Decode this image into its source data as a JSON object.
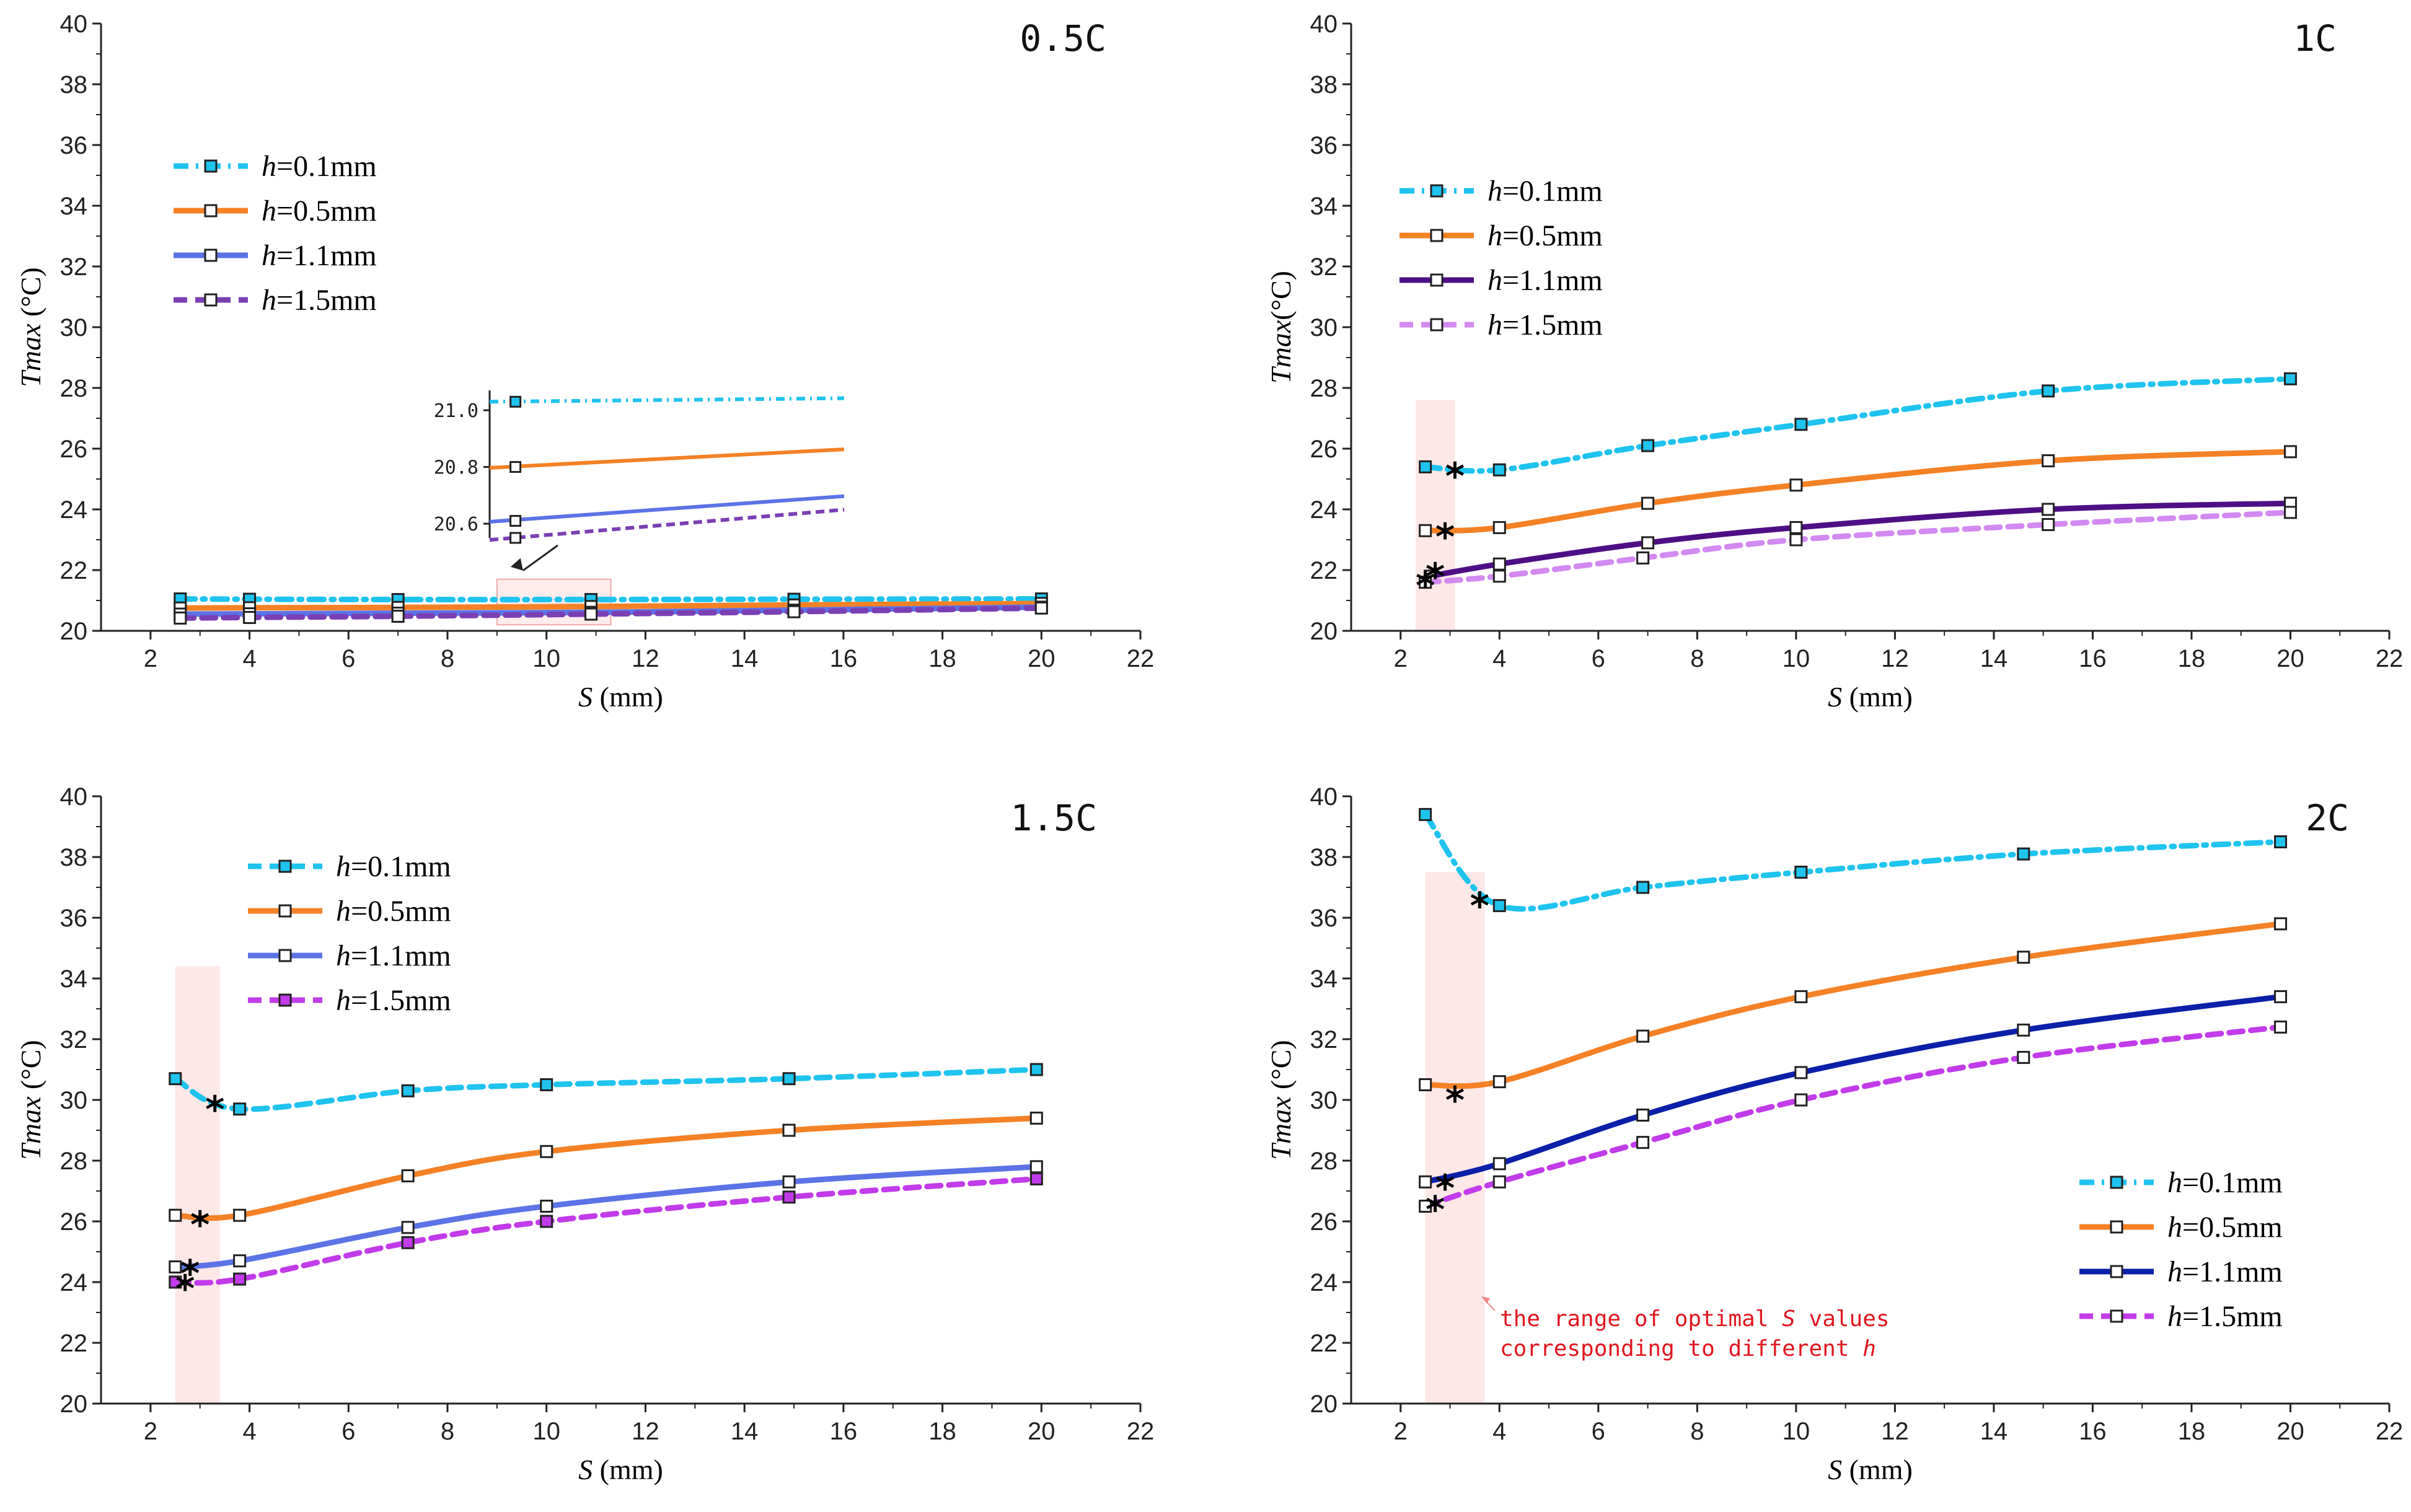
{
  "figure": {
    "inset_ticks": [
      "21.0",
      "20.8",
      "20.6"
    ],
    "annotation_lines": [
      "the range of optimal S values",
      "corresponding to different h"
    ],
    "star_symbol": "*"
  },
  "chart_data": [
    {
      "type": "line",
      "id": "p05",
      "condition_label": "0.5C",
      "xlabel_var": "S",
      "xlabel_unit": " (mm)",
      "ylabel_var": "Tmax",
      "ylabel_unit": " (°C)",
      "xlim": [
        1,
        22
      ],
      "ylim": [
        20,
        40
      ],
      "xticks": [
        2,
        4,
        6,
        8,
        10,
        12,
        14,
        16,
        18,
        20,
        22
      ],
      "yticks": [
        20,
        22,
        24,
        26,
        28,
        30,
        32,
        34,
        36,
        38,
        40
      ],
      "legend_position": "upper-left",
      "highlight_region": {
        "x": [
          9.0,
          11.3
        ],
        "y": [
          20.2,
          21.7
        ]
      },
      "inset": {
        "xlim": [
          10.5,
          16.0
        ],
        "ylim": [
          20.55,
          21.07
        ],
        "yticks": [
          21.0,
          20.8,
          20.6
        ]
      },
      "stars": [],
      "series": [
        {
          "name": "h=0.1mm",
          "h_var": "h",
          "h_value": "=0.1mm",
          "color": "#1ec3ee",
          "dash": "dashdot",
          "marker_fill": "#1ec3ee",
          "x": [
            2.6,
            4.0,
            7.0,
            10.9,
            15.0,
            20.0
          ],
          "y": [
            21.05,
            21.04,
            21.03,
            21.03,
            21.04,
            21.05
          ]
        },
        {
          "name": "h=0.5mm",
          "h_var": "h",
          "h_value": "=0.5mm",
          "color": "#f48125",
          "dash": "solid",
          "marker_fill": "#ffffff",
          "x": [
            2.6,
            4.0,
            7.0,
            10.9,
            15.0,
            20.0
          ],
          "y": [
            20.75,
            20.76,
            20.77,
            20.8,
            20.85,
            20.9
          ]
        },
        {
          "name": "h=1.1mm",
          "h_var": "h",
          "h_value": "=1.1mm",
          "color": "#5b73e6",
          "dash": "solid",
          "marker_fill": "#ffffff",
          "x": [
            2.6,
            4.0,
            7.0,
            10.9,
            15.0,
            20.0
          ],
          "y": [
            20.55,
            20.56,
            20.58,
            20.61,
            20.68,
            20.78
          ]
        },
        {
          "name": "h=1.5mm",
          "h_var": "h",
          "h_value": "=1.5mm",
          "color": "#7b3fb4",
          "dash": "dashed",
          "marker_fill": "#ffffff",
          "x": [
            2.6,
            4.0,
            7.0,
            10.9,
            15.0,
            20.0
          ],
          "y": [
            20.42,
            20.44,
            20.48,
            20.55,
            20.63,
            20.75
          ]
        }
      ]
    },
    {
      "type": "line",
      "id": "p1",
      "condition_label": "1C",
      "xlabel_var": "S",
      "xlabel_unit": " (mm)",
      "ylabel_var": "Tmax",
      "ylabel_unit": "(°C)",
      "xlim": [
        1,
        22
      ],
      "ylim": [
        20,
        40
      ],
      "xticks": [
        2,
        4,
        6,
        8,
        10,
        12,
        14,
        16,
        18,
        20,
        22
      ],
      "yticks": [
        20,
        22,
        24,
        26,
        28,
        30,
        32,
        34,
        36,
        38,
        40
      ],
      "legend_position": "upper-left",
      "highlight_region": {
        "x": [
          2.3,
          3.1
        ],
        "y": [
          20,
          27.6
        ]
      },
      "stars": [
        {
          "x": 3.1,
          "y": 25.2
        },
        {
          "x": 2.9,
          "y": 23.2
        },
        {
          "x": 2.7,
          "y": 21.9
        },
        {
          "x": 2.5,
          "y": 21.6
        }
      ],
      "series": [
        {
          "name": "h=0.1mm",
          "h_var": "h",
          "h_value": "=0.1mm",
          "color": "#1ec3ee",
          "dash": "dashdot",
          "marker_fill": "#1ec3ee",
          "x": [
            2.5,
            4.0,
            7.0,
            10.1,
            15.1,
            20.0
          ],
          "y": [
            25.4,
            25.3,
            26.1,
            26.8,
            27.9,
            28.3
          ]
        },
        {
          "name": "h=0.5mm",
          "h_var": "h",
          "h_value": "=0.5mm",
          "color": "#f48125",
          "dash": "solid",
          "marker_fill": "#ffffff",
          "x": [
            2.5,
            4.0,
            7.0,
            10.0,
            15.1,
            20.0
          ],
          "y": [
            23.3,
            23.4,
            24.2,
            24.8,
            25.6,
            25.9
          ]
        },
        {
          "name": "h=1.1mm",
          "h_var": "h",
          "h_value": "=1.1mm",
          "color": "#4e0f84",
          "dash": "solid",
          "marker_fill": "#ffffff",
          "x": [
            2.6,
            4.0,
            7.0,
            10.0,
            15.1,
            20.0
          ],
          "y": [
            21.8,
            22.2,
            22.9,
            23.4,
            24.0,
            24.2
          ]
        },
        {
          "name": "h=1.5mm",
          "h_var": "h",
          "h_value": "=1.5mm",
          "color": "#d289f0",
          "dash": "dashed",
          "marker_fill": "#ffffff",
          "x": [
            2.5,
            4.0,
            6.9,
            10.0,
            15.1,
            20.0
          ],
          "y": [
            21.6,
            21.8,
            22.4,
            23.0,
            23.5,
            23.9
          ]
        }
      ]
    },
    {
      "type": "line",
      "id": "p15",
      "condition_label": "1.5C",
      "xlabel_var": "S",
      "xlabel_unit": " (mm)",
      "ylabel_var": "Tmax",
      "ylabel_unit": " (°C)",
      "xlim": [
        1,
        22
      ],
      "ylim": [
        20,
        40
      ],
      "xticks": [
        2,
        4,
        6,
        8,
        10,
        12,
        14,
        16,
        18,
        20,
        22
      ],
      "yticks": [
        20,
        22,
        24,
        26,
        28,
        30,
        32,
        34,
        36,
        38,
        40
      ],
      "legend_position": "upper-left",
      "highlight_region": {
        "x": [
          2.5,
          3.4
        ],
        "y": [
          20,
          34.4
        ]
      },
      "stars": [
        {
          "x": 3.3,
          "y": 29.8
        },
        {
          "x": 3.0,
          "y": 26.0
        },
        {
          "x": 2.8,
          "y": 24.4
        },
        {
          "x": 2.7,
          "y": 23.9
        }
      ],
      "series": [
        {
          "name": "h=0.1mm",
          "h_var": "h",
          "h_value": "=0.1mm",
          "color": "#1ec3ee",
          "dash": "dashed",
          "marker_fill": "#1ec3ee",
          "x": [
            2.5,
            3.8,
            7.2,
            10.0,
            14.9,
            19.9
          ],
          "y": [
            30.7,
            29.7,
            30.3,
            30.5,
            30.7,
            31.0
          ]
        },
        {
          "name": "h=0.5mm",
          "h_var": "h",
          "h_value": "=0.5mm",
          "color": "#f48125",
          "dash": "solid",
          "marker_fill": "#ffffff",
          "x": [
            2.5,
            3.8,
            7.2,
            10.0,
            14.9,
            19.9
          ],
          "y": [
            26.2,
            26.2,
            27.5,
            28.3,
            29.0,
            29.4
          ]
        },
        {
          "name": "h=1.1mm",
          "h_var": "h",
          "h_value": "=1.1mm",
          "color": "#5b73e6",
          "dash": "solid",
          "marker_fill": "#ffffff",
          "x": [
            2.5,
            3.8,
            7.2,
            10.0,
            14.9,
            19.9
          ],
          "y": [
            24.5,
            24.7,
            25.8,
            26.5,
            27.3,
            27.8
          ]
        },
        {
          "name": "h=1.5mm",
          "h_var": "h",
          "h_value": "=1.5mm",
          "color": "#c13bea",
          "dash": "dashed",
          "marker_fill": "#c13bea",
          "x": [
            2.5,
            3.8,
            7.2,
            10.0,
            14.9,
            19.9
          ],
          "y": [
            24.0,
            24.1,
            25.3,
            26.0,
            26.8,
            27.4
          ]
        }
      ]
    },
    {
      "type": "line",
      "id": "p2",
      "condition_label": "2C",
      "xlabel_var": "S",
      "xlabel_unit": " (mm)",
      "ylabel_var": "Tmax",
      "ylabel_unit": " (°C)",
      "xlim": [
        1,
        22
      ],
      "ylim": [
        20,
        40
      ],
      "xticks": [
        2,
        4,
        6,
        8,
        10,
        12,
        14,
        16,
        18,
        20,
        22
      ],
      "yticks": [
        20,
        22,
        24,
        26,
        28,
        30,
        32,
        34,
        36,
        38,
        40
      ],
      "legend_position": "lower-right",
      "highlight_region": {
        "x": [
          2.5,
          3.7
        ],
        "y": [
          20,
          37.5
        ]
      },
      "stars": [
        {
          "x": 3.6,
          "y": 36.5
        },
        {
          "x": 3.1,
          "y": 30.1
        },
        {
          "x": 2.9,
          "y": 27.2
        },
        {
          "x": 2.7,
          "y": 26.5
        }
      ],
      "series": [
        {
          "name": "h=0.1mm",
          "h_var": "h",
          "h_value": "=0.1mm",
          "color": "#1ec3ee",
          "dash": "dashdot",
          "marker_fill": "#1ec3ee",
          "x": [
            2.5,
            4.0,
            6.9,
            10.1,
            14.6,
            19.8
          ],
          "y": [
            39.4,
            36.4,
            37.0,
            37.5,
            38.1,
            38.5
          ]
        },
        {
          "name": "h=0.5mm",
          "h_var": "h",
          "h_value": "=0.5mm",
          "color": "#f48125",
          "dash": "solid",
          "marker_fill": "#ffffff",
          "x": [
            2.5,
            4.0,
            6.9,
            10.1,
            14.6,
            19.8
          ],
          "y": [
            30.5,
            30.6,
            32.1,
            33.4,
            34.7,
            35.8
          ]
        },
        {
          "name": "h=1.1mm",
          "h_var": "h",
          "h_value": "=1.1mm",
          "color": "#0b1fa8",
          "dash": "solid",
          "marker_fill": "#ffffff",
          "x": [
            2.5,
            4.0,
            6.9,
            10.1,
            14.6,
            19.8
          ],
          "y": [
            27.3,
            27.9,
            29.5,
            30.9,
            32.3,
            33.4
          ]
        },
        {
          "name": "h=1.5mm",
          "h_var": "h",
          "h_value": "=1.5mm",
          "color": "#c13bea",
          "dash": "dashed",
          "marker_fill": "#ffffff",
          "x": [
            2.5,
            4.0,
            6.9,
            10.1,
            14.6,
            19.8
          ],
          "y": [
            26.5,
            27.3,
            28.6,
            30.0,
            31.4,
            32.4
          ]
        }
      ]
    }
  ]
}
